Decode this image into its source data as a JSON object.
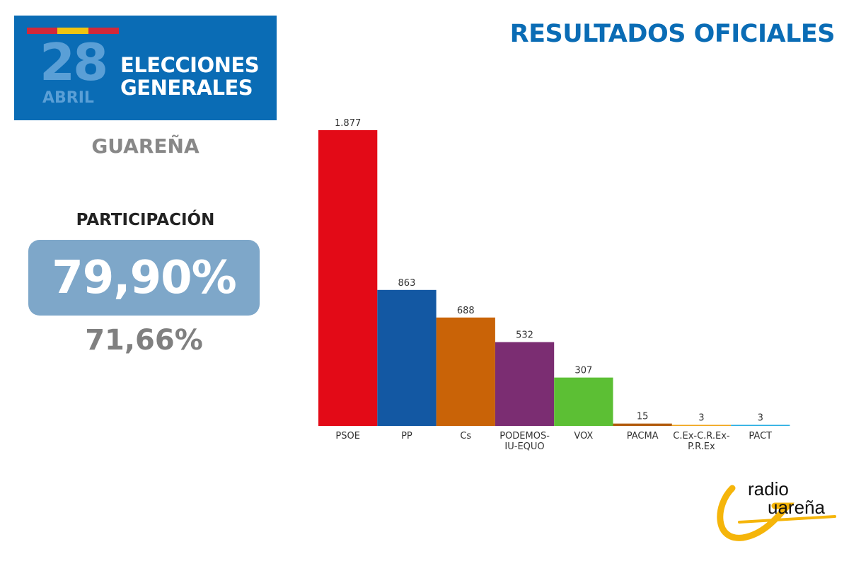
{
  "header": {
    "day": "28",
    "month": "ABRIL",
    "title": "ELECCIONES\nGENERALES",
    "flag_colors": [
      "#d1283a",
      "#f1c40f",
      "#d1283a"
    ]
  },
  "place": "GUAREÑA",
  "participation": {
    "label": "PARTICIPACIÓN",
    "value": "79,90%",
    "previous": "71,66%"
  },
  "main_title": "RESULTADOS OFICIALES",
  "chart_data": {
    "type": "bar",
    "categories": [
      "PSOE",
      "PP",
      "Cs",
      "PODEMOS-\nIU-EQUO",
      "VOX",
      "PACMA",
      "C.Ex-C.R.Ex-\nP.R.Ex",
      "PACT"
    ],
    "values": [
      1877,
      863,
      688,
      532,
      307,
      15,
      3,
      3
    ],
    "value_labels": [
      "1.877",
      "863",
      "688",
      "532",
      "307",
      "15",
      "3",
      "3"
    ],
    "colors": [
      "#e30a17",
      "#1358a3",
      "#c96307",
      "#7b2d72",
      "#5cbf34",
      "#b25c0e",
      "#f0a61c",
      "#2aaee2"
    ],
    "ylim": [
      0,
      1877
    ],
    "grid": false,
    "legend": "none"
  },
  "logo": {
    "line1": "radio",
    "line2": "uareña",
    "initial": "G",
    "color": "#f5b50a"
  }
}
